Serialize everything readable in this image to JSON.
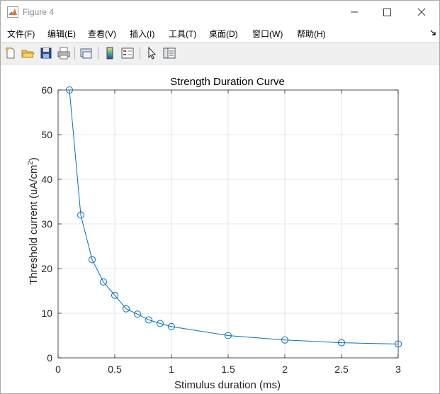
{
  "window": {
    "title": "Figure 4"
  },
  "menu": [
    {
      "label": "文件(F)"
    },
    {
      "label": "编辑(E)"
    },
    {
      "label": "查看(V)"
    },
    {
      "label": "插入(I)"
    },
    {
      "label": "工具(T)"
    },
    {
      "label": "桌面(D)"
    },
    {
      "label": "窗口(W)"
    },
    {
      "label": "帮助(H)"
    }
  ],
  "toolbar": {
    "icons": [
      "new-figure-icon",
      "open-file-icon",
      "save-icon",
      "print-icon",
      "link-plot-icon",
      "colorbar-icon",
      "legend-icon",
      "edit-plot-arrow-icon",
      "property-inspector-icon"
    ]
  },
  "colors": {
    "line": "#0072bd",
    "grid": "#dfdfdf",
    "axes": "#262626"
  },
  "chart_data": {
    "type": "line",
    "title": "Strength Duration Curve",
    "xlabel": "Stimulus duration (ms)",
    "ylabel_main": "Threshold current (uA/cm",
    "ylabel_sup": "2",
    "ylabel_tail": ")",
    "xlim": [
      0,
      3
    ],
    "ylim": [
      0,
      60
    ],
    "xticks": [
      0,
      0.5,
      1,
      1.5,
      2,
      2.5,
      3
    ],
    "xtick_labels": [
      "0",
      "0.5",
      "1",
      "1.5",
      "2",
      "2.5",
      "3"
    ],
    "yticks": [
      0,
      10,
      20,
      30,
      40,
      50,
      60
    ],
    "ytick_labels": [
      "0",
      "10",
      "20",
      "30",
      "40",
      "50",
      "60"
    ],
    "grid": true,
    "marker": "circle",
    "x": [
      0.1,
      0.2,
      0.3,
      0.4,
      0.5,
      0.6,
      0.7,
      0.8,
      0.9,
      1.0,
      1.5,
      2.0,
      2.5,
      3.0
    ],
    "y": [
      60,
      32,
      22,
      17,
      14,
      11,
      9.8,
      8.5,
      7.7,
      7.0,
      5.0,
      4.0,
      3.4,
      3.1
    ]
  }
}
